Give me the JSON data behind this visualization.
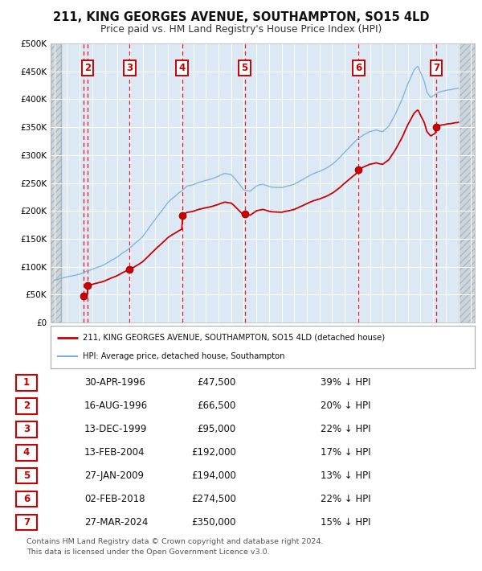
{
  "title_line1": "211, KING GEORGES AVENUE, SOUTHAMPTON, SO15 4LD",
  "title_line2": "Price paid vs. HM Land Registry's House Price Index (HPI)",
  "background_color": "#dce9f5",
  "plot_bg_color": "#dce9f5",
  "hpi_color": "#7ab0d4",
  "price_color": "#cc0000",
  "vline_color": "#ee0000",
  "ylim": [
    0,
    500000
  ],
  "yticks": [
    0,
    50000,
    100000,
    150000,
    200000,
    250000,
    300000,
    350000,
    400000,
    450000,
    500000
  ],
  "ytick_labels": [
    "£0",
    "£50K",
    "£100K",
    "£150K",
    "£200K",
    "£250K",
    "£300K",
    "£350K",
    "£400K",
    "£450K",
    "£500K"
  ],
  "xlim_start": 1993.7,
  "xlim_end": 2027.3,
  "xticks": [
    1994,
    1995,
    1996,
    1997,
    1998,
    1999,
    2000,
    2001,
    2002,
    2003,
    2004,
    2005,
    2006,
    2007,
    2008,
    2009,
    2010,
    2011,
    2012,
    2013,
    2014,
    2015,
    2016,
    2017,
    2018,
    2019,
    2020,
    2021,
    2022,
    2023,
    2024,
    2025,
    2026,
    2027
  ],
  "sales": [
    {
      "num": 1,
      "date": "30-APR-1996",
      "year": 1996.33,
      "price": 47500,
      "show_top_label": false
    },
    {
      "num": 2,
      "date": "16-AUG-1996",
      "year": 1996.62,
      "price": 66500,
      "show_top_label": true
    },
    {
      "num": 3,
      "date": "13-DEC-1999",
      "year": 1999.95,
      "price": 95000,
      "show_top_label": true
    },
    {
      "num": 4,
      "date": "13-FEB-2004",
      "year": 2004.12,
      "price": 192000,
      "show_top_label": true
    },
    {
      "num": 5,
      "date": "27-JAN-2009",
      "year": 2009.07,
      "price": 194000,
      "show_top_label": true
    },
    {
      "num": 6,
      "date": "02-FEB-2018",
      "year": 2018.09,
      "price": 274500,
      "show_top_label": true
    },
    {
      "num": 7,
      "date": "27-MAR-2024",
      "year": 2024.24,
      "price": 350000,
      "show_top_label": true
    }
  ],
  "legend_line1": "211, KING GEORGES AVENUE, SOUTHAMPTON, SO15 4LD (detached house)",
  "legend_line2": "HPI: Average price, detached house, Southampton",
  "footer_line1": "Contains HM Land Registry data © Crown copyright and database right 2024.",
  "footer_line2": "This data is licensed under the Open Government Licence v3.0.",
  "table_rows": [
    [
      "1",
      "30-APR-1996",
      "£47,500",
      "39% ↓ HPI"
    ],
    [
      "2",
      "16-AUG-1996",
      "£66,500",
      "20% ↓ HPI"
    ],
    [
      "3",
      "13-DEC-1999",
      "£95,000",
      "22% ↓ HPI"
    ],
    [
      "4",
      "13-FEB-2004",
      "£192,000",
      "17% ↓ HPI"
    ],
    [
      "5",
      "27-JAN-2009",
      "£194,000",
      "13% ↓ HPI"
    ],
    [
      "6",
      "02-FEB-2018",
      "£274,500",
      "22% ↓ HPI"
    ],
    [
      "7",
      "27-MAR-2024",
      "£350,000",
      "15% ↓ HPI"
    ]
  ],
  "hpi_keypoints": [
    [
      1994.0,
      76000
    ],
    [
      1995.0,
      81000
    ],
    [
      1996.0,
      85000
    ],
    [
      1997.0,
      95000
    ],
    [
      1998.0,
      105000
    ],
    [
      1999.0,
      118000
    ],
    [
      2000.0,
      135000
    ],
    [
      2001.0,
      155000
    ],
    [
      2002.0,
      185000
    ],
    [
      2003.0,
      215000
    ],
    [
      2004.0,
      235000
    ],
    [
      2004.5,
      245000
    ],
    [
      2005.0,
      248000
    ],
    [
      2005.5,
      252000
    ],
    [
      2006.0,
      255000
    ],
    [
      2006.5,
      258000
    ],
    [
      2007.0,
      263000
    ],
    [
      2007.5,
      268000
    ],
    [
      2008.0,
      265000
    ],
    [
      2008.5,
      252000
    ],
    [
      2009.0,
      238000
    ],
    [
      2009.5,
      235000
    ],
    [
      2010.0,
      245000
    ],
    [
      2010.5,
      248000
    ],
    [
      2011.0,
      244000
    ],
    [
      2011.5,
      243000
    ],
    [
      2012.0,
      242000
    ],
    [
      2012.5,
      245000
    ],
    [
      2013.0,
      248000
    ],
    [
      2013.5,
      255000
    ],
    [
      2014.0,
      262000
    ],
    [
      2014.5,
      268000
    ],
    [
      2015.0,
      272000
    ],
    [
      2015.5,
      278000
    ],
    [
      2016.0,
      285000
    ],
    [
      2016.5,
      295000
    ],
    [
      2017.0,
      308000
    ],
    [
      2017.5,
      320000
    ],
    [
      2018.0,
      332000
    ],
    [
      2018.5,
      340000
    ],
    [
      2019.0,
      345000
    ],
    [
      2019.5,
      348000
    ],
    [
      2020.0,
      345000
    ],
    [
      2020.5,
      355000
    ],
    [
      2021.0,
      375000
    ],
    [
      2021.5,
      400000
    ],
    [
      2022.0,
      430000
    ],
    [
      2022.5,
      455000
    ],
    [
      2022.8,
      462000
    ],
    [
      2023.0,
      450000
    ],
    [
      2023.3,
      435000
    ],
    [
      2023.5,
      415000
    ],
    [
      2023.8,
      405000
    ],
    [
      2024.0,
      408000
    ],
    [
      2024.5,
      415000
    ],
    [
      2025.0,
      418000
    ],
    [
      2025.5,
      420000
    ],
    [
      2026.0,
      422000
    ]
  ]
}
